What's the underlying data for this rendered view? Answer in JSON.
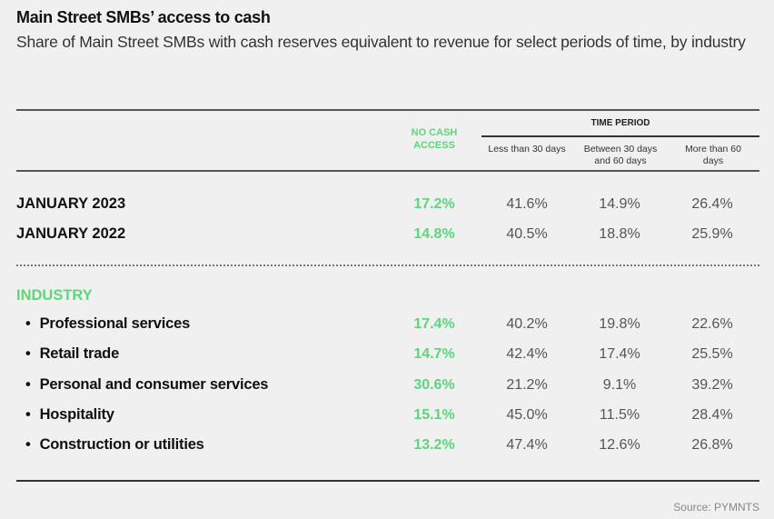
{
  "title": "Main Street SMBs’ access to cash",
  "subtitle": "Share of Main Street SMBs with cash reserves equivalent to revenue for select periods of time, by industry",
  "headers": {
    "no_cash": "NO CASH ACCESS",
    "time_period": "TIME PERIOD",
    "col1": "Less than 30 days",
    "col2": "Between 30 days and 60 days",
    "col3": "More than 60 days"
  },
  "industry_label": "INDUSTRY",
  "source": "Source: PYMNTS",
  "colors": {
    "accent_green": "#5cd67c",
    "text": "#111111",
    "value_gray": "#555555"
  },
  "chart_data": {
    "type": "table",
    "title": "Main Street SMBs’ access to cash",
    "subtitle": "Share of Main Street SMBs with cash reserves equivalent to revenue for select periods of time, by industry",
    "columns": [
      "NO CASH ACCESS",
      "Less than 30 days",
      "Between 30 days and 60 days",
      "More than 60 days"
    ],
    "column_group": "TIME PERIOD",
    "rows": [
      {
        "label": "JANUARY 2023",
        "group": "overall",
        "values": [
          "17.2%",
          "41.6%",
          "14.9%",
          "26.4%"
        ]
      },
      {
        "label": "JANUARY 2022",
        "group": "overall",
        "values": [
          "14.8%",
          "40.5%",
          "18.8%",
          "25.9%"
        ]
      },
      {
        "label": "Professional services",
        "group": "INDUSTRY",
        "values": [
          "17.4%",
          "40.2%",
          "19.8%",
          "22.6%"
        ]
      },
      {
        "label": "Retail trade",
        "group": "INDUSTRY",
        "values": [
          "14.7%",
          "42.4%",
          "17.4%",
          "25.5%"
        ]
      },
      {
        "label": "Personal and consumer services",
        "group": "INDUSTRY",
        "values": [
          "30.6%",
          "21.2%",
          "9.1%",
          "39.2%"
        ]
      },
      {
        "label": "Hospitality",
        "group": "INDUSTRY",
        "values": [
          "15.1%",
          "45.0%",
          "11.5%",
          "28.4%"
        ]
      },
      {
        "label": "Construction or utilities",
        "group": "INDUSTRY",
        "values": [
          "13.2%",
          "47.4%",
          "12.6%",
          "26.8%"
        ]
      }
    ]
  }
}
